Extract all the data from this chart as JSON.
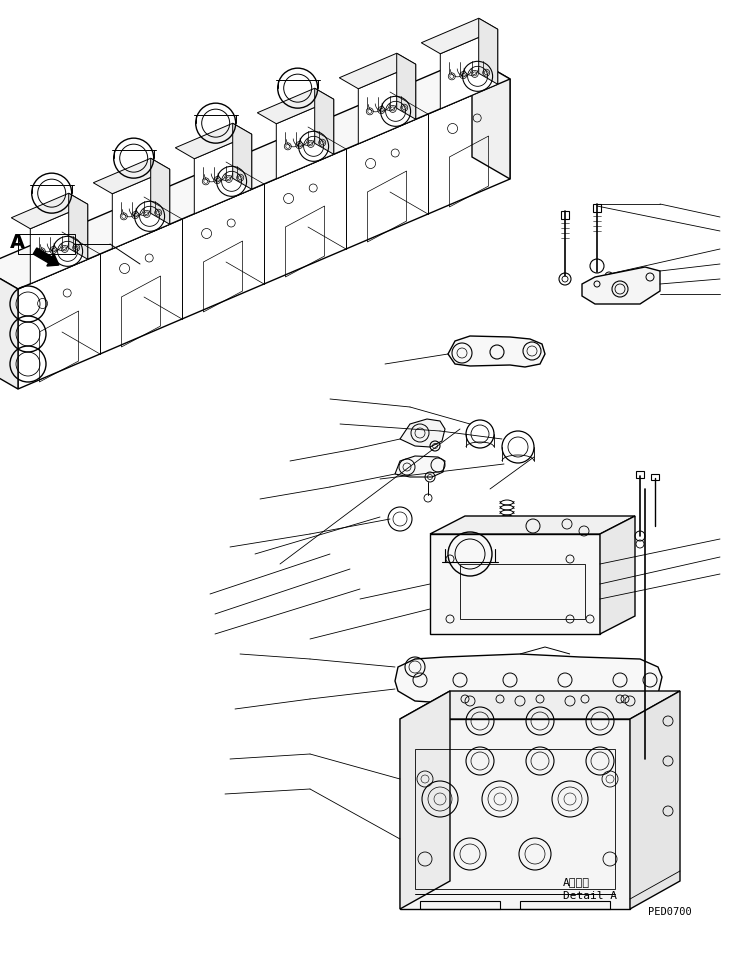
{
  "background_color": "#ffffff",
  "line_color": "#000000",
  "fig_width": 7.49,
  "fig_height": 9.62,
  "dpi": 100,
  "text_bottom_1": "A 詳細",
  "text_bottom_2": "Detail A",
  "text_code": "PED0700",
  "label_A": "A"
}
